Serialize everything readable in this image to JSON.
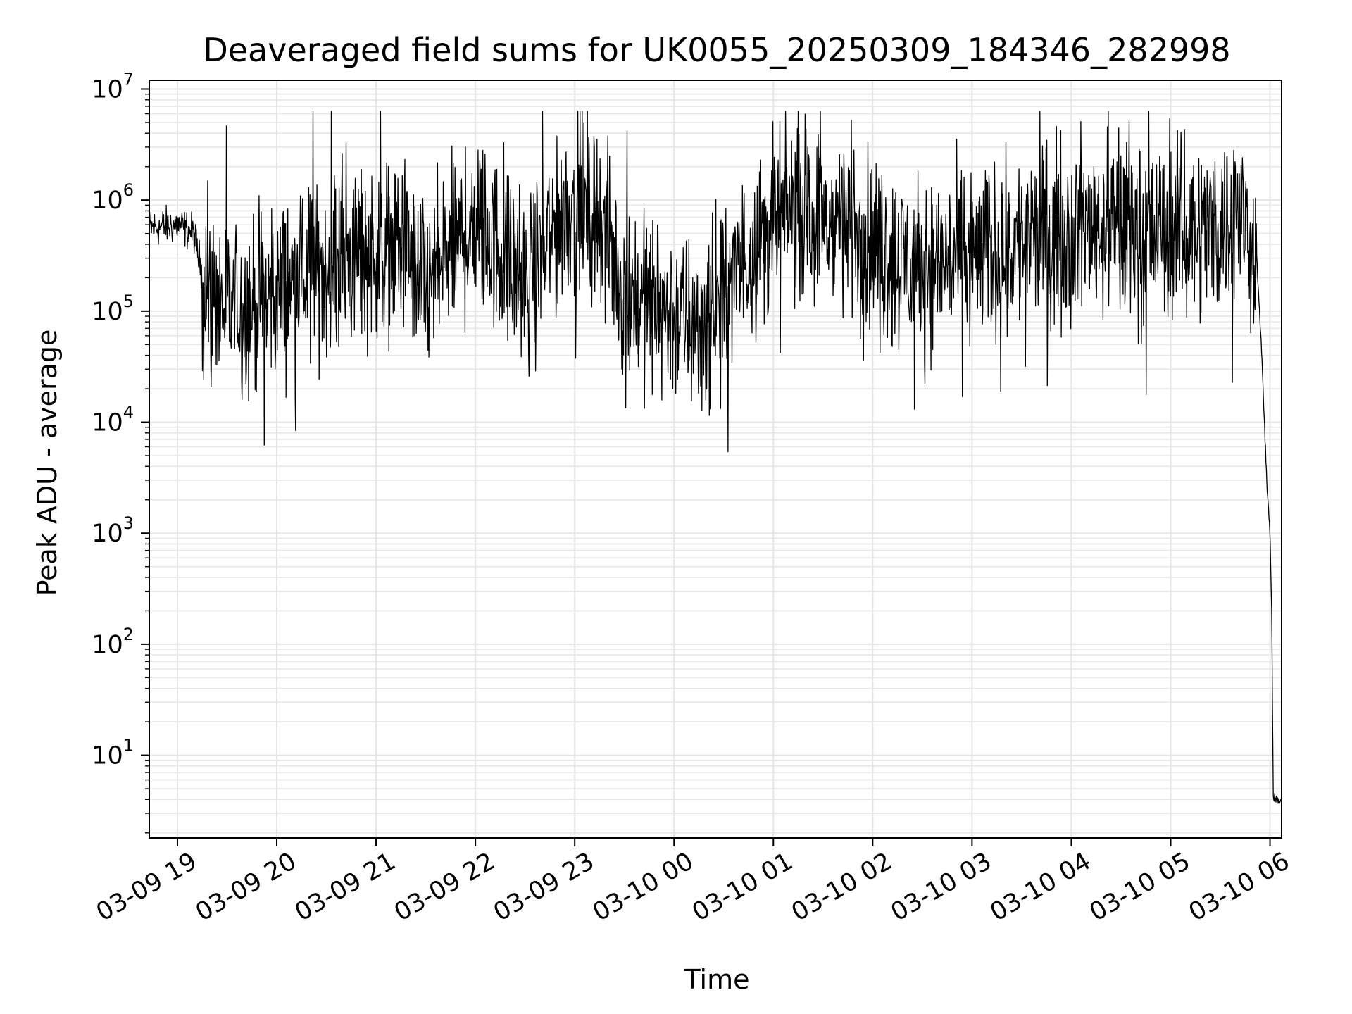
{
  "chart_data": {
    "type": "line",
    "title": "Deaveraged field sums for UK0055_20250309_184346_282998",
    "xlabel": "Time",
    "ylabel": "Peak ADU - average",
    "yscale": "log",
    "ylim": [
      1.8,
      12000000
    ],
    "xlim": [
      "2025-03-09 18:43",
      "2025-03-10 06:07"
    ],
    "grid": true,
    "line_color": "#000000",
    "grid_color": "#e6e6e6",
    "x_ticks": [
      {
        "value": "2025-03-09 19:00",
        "label": "03-09 19"
      },
      {
        "value": "2025-03-09 20:00",
        "label": "03-09 20"
      },
      {
        "value": "2025-03-09 21:00",
        "label": "03-09 21"
      },
      {
        "value": "2025-03-09 22:00",
        "label": "03-09 22"
      },
      {
        "value": "2025-03-09 23:00",
        "label": "03-09 23"
      },
      {
        "value": "2025-03-10 00:00",
        "label": "03-10 00"
      },
      {
        "value": "2025-03-10 01:00",
        "label": "03-10 01"
      },
      {
        "value": "2025-03-10 02:00",
        "label": "03-10 02"
      },
      {
        "value": "2025-03-10 03:00",
        "label": "03-10 03"
      },
      {
        "value": "2025-03-10 04:00",
        "label": "03-10 04"
      },
      {
        "value": "2025-03-10 05:00",
        "label": "03-10 05"
      },
      {
        "value": "2025-03-10 06:00",
        "label": "03-10 06"
      }
    ],
    "y_ticks": [
      {
        "value": 10,
        "base": "10",
        "exp": "1"
      },
      {
        "value": 100,
        "base": "10",
        "exp": "2"
      },
      {
        "value": 1000,
        "base": "10",
        "exp": "3"
      },
      {
        "value": 10000,
        "base": "10",
        "exp": "4"
      },
      {
        "value": 100000,
        "base": "10",
        "exp": "5"
      },
      {
        "value": 1000000,
        "base": "10",
        "exp": "6"
      },
      {
        "value": 10000000,
        "base": "10",
        "exp": "7"
      }
    ],
    "series": [
      {
        "x": [
          "2025-03-09 18:43",
          "2025-03-09 19:00",
          "2025-03-09 19:10",
          "2025-03-09 19:18",
          "2025-03-09 19:30",
          "2025-03-09 19:45",
          "2025-03-09 20:00",
          "2025-03-09 20:15",
          "2025-03-09 20:30",
          "2025-03-09 20:45",
          "2025-03-09 21:00",
          "2025-03-09 21:15",
          "2025-03-09 21:30",
          "2025-03-09 21:45",
          "2025-03-09 22:00",
          "2025-03-09 22:15",
          "2025-03-09 22:30",
          "2025-03-09 22:45",
          "2025-03-09 23:00",
          "2025-03-09 23:15",
          "2025-03-09 23:30",
          "2025-03-09 23:45",
          "2025-03-10 00:00",
          "2025-03-10 00:15",
          "2025-03-10 00:30",
          "2025-03-10 00:45",
          "2025-03-10 01:00",
          "2025-03-10 01:15",
          "2025-03-10 01:30",
          "2025-03-10 01:45",
          "2025-03-10 02:00",
          "2025-03-10 02:15",
          "2025-03-10 02:30",
          "2025-03-10 02:45",
          "2025-03-10 03:00",
          "2025-03-10 03:15",
          "2025-03-10 03:30",
          "2025-03-10 03:45",
          "2025-03-10 04:00",
          "2025-03-10 04:15",
          "2025-03-10 04:30",
          "2025-03-10 04:45",
          "2025-03-10 05:00",
          "2025-03-10 05:15",
          "2025-03-10 05:30",
          "2025-03-10 05:45",
          "2025-03-10 05:52",
          "2025-03-10 05:55",
          "2025-03-10 05:58",
          "2025-03-10 06:00",
          "2025-03-10 06:01",
          "2025-03-10 06:02",
          "2025-03-10 06:07"
        ],
        "y": [
          560000,
          600000,
          500000,
          130000,
          110000,
          110000,
          150000,
          200000,
          250000,
          300000,
          350000,
          400000,
          150000,
          350000,
          600000,
          350000,
          150000,
          450000,
          1000000,
          700000,
          150000,
          120000,
          90000,
          70000,
          120000,
          350000,
          600000,
          900000,
          600000,
          700000,
          400000,
          300000,
          250000,
          280000,
          300000,
          350000,
          400000,
          500000,
          550000,
          600000,
          550000,
          500000,
          500000,
          550000,
          600000,
          700000,
          300000,
          40000,
          3000,
          1000,
          200,
          4,
          4
        ]
      }
    ]
  }
}
